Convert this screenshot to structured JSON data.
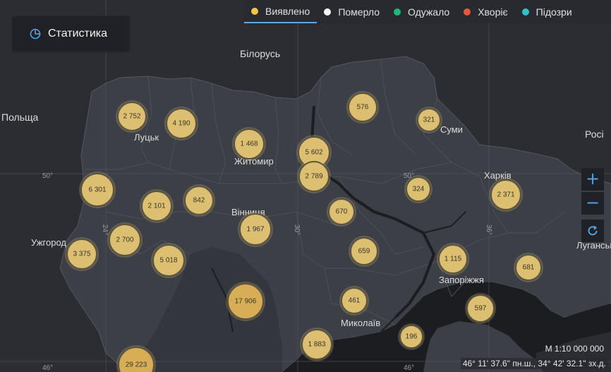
{
  "tabs": [
    {
      "label": "Виявлено",
      "color": "#f5c543",
      "active": true
    },
    {
      "label": "Померло",
      "color": "#ffffff",
      "active": false
    },
    {
      "label": "Одужало",
      "color": "#1fb67a",
      "active": false
    },
    {
      "label": "Хворіє",
      "color": "#e8573c",
      "active": false
    },
    {
      "label": "Підозри",
      "color": "#33c2c8",
      "active": false
    }
  ],
  "stat_button": {
    "label": "Статистика"
  },
  "places": {
    "belarus": "Білорусь",
    "poland": "Польща",
    "russia": "Росі",
    "lutsk": "Луцьк",
    "zhytomyr": "Житомир",
    "vinnytsia": "Вінниця",
    "uzhhorod": "Ужгород",
    "sumy": "Суми",
    "kharkiv": "Харків",
    "zaporizhzhia": "Запоріжжя",
    "mykolaiv": "Миколаїв",
    "luhansk": "Луганськ"
  },
  "grid_labels": {
    "lat50_left": "50°",
    "lat50_mid": "50°",
    "lat46_left": "46°",
    "lat46_mid": "46°",
    "lon24": "24°",
    "lon30": "30°",
    "lon36": "36°"
  },
  "clusters": [
    {
      "value": "2 752"
    },
    {
      "value": "4 190"
    },
    {
      "value": "1 468"
    },
    {
      "value": "5 602"
    },
    {
      "value": "2 789"
    },
    {
      "value": "576"
    },
    {
      "value": "321"
    },
    {
      "value": "6 301"
    },
    {
      "value": "2 101"
    },
    {
      "value": "842"
    },
    {
      "value": "324"
    },
    {
      "value": "2 371"
    },
    {
      "value": "670"
    },
    {
      "value": "1 967"
    },
    {
      "value": "2 700"
    },
    {
      "value": "3 375"
    },
    {
      "value": "5 018"
    },
    {
      "value": "659"
    },
    {
      "value": "1 115"
    },
    {
      "value": "681"
    },
    {
      "value": "17 906"
    },
    {
      "value": "461"
    },
    {
      "value": "597"
    },
    {
      "value": "196"
    },
    {
      "value": "1 883"
    },
    {
      "value": "29 223"
    }
  ],
  "zoom": {
    "in": "+",
    "out": "−"
  },
  "scale": "М 1:10 000 000",
  "coordinates": "46° 11' 37.6\" пн.ш., 34° 42' 32.1\" зх.д.",
  "colors": {
    "map_bg": "#2b2d33",
    "land": "#3d3f47",
    "water": "#1c1d21",
    "cluster_fill": "#ddbf72",
    "accent": "#5aa6e6"
  }
}
